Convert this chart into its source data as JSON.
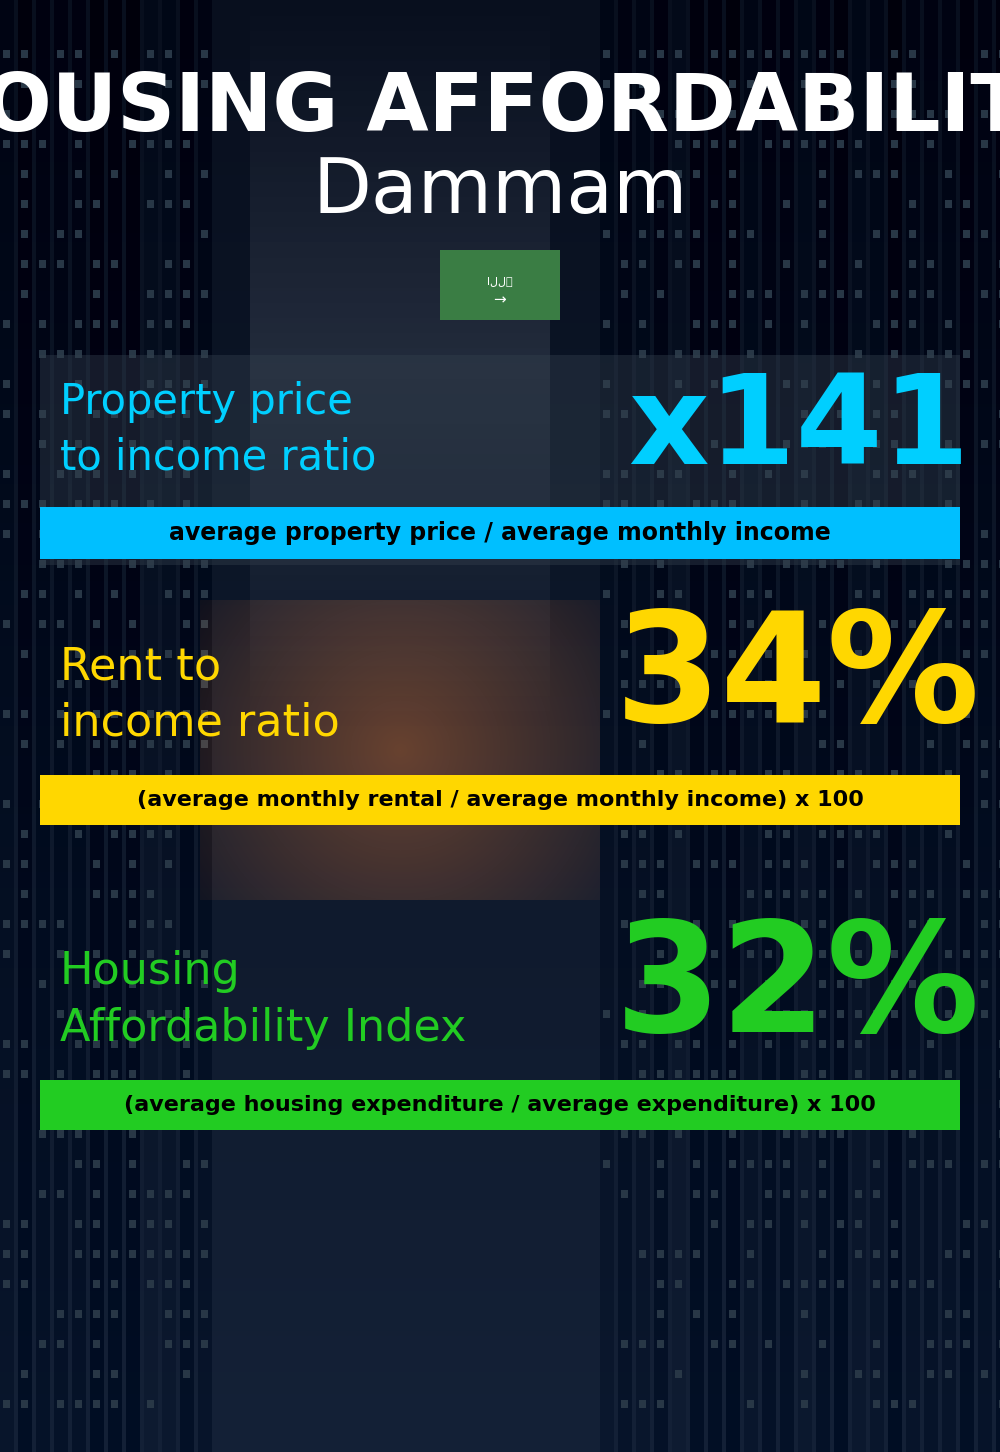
{
  "title_main": "HOUSING AFFORDABILITY",
  "title_city": "Dammam",
  "section1_label": "Property price\nto income ratio",
  "section1_value": "x141",
  "section1_sublabel": "average property price / average monthly income",
  "section1_label_color": "#00CFFF",
  "section1_value_color": "#00CFFF",
  "section1_bg_color": "#00BFFF",
  "section2_label": "Rent to\nincome ratio",
  "section2_value": "34%",
  "section2_sublabel": "(average monthly rental / average monthly income) x 100",
  "section2_label_color": "#FFD700",
  "section2_value_color": "#FFD700",
  "section2_bg_color": "#FFD700",
  "section3_label": "Housing\nAffordability Index",
  "section3_value": "32%",
  "section3_sublabel": "(average housing expenditure / average expenditure) x 100",
  "section3_label_color": "#22CC22",
  "section3_value_color": "#22CC22",
  "section3_bg_color": "#22CC22",
  "bg_dark": "#060e1a",
  "text_color": "#ffffff",
  "flag_green": "#3a7d44",
  "title_fontsize": 58,
  "city_fontsize": 55,
  "label_fontsize": 28,
  "value_fontsize": 82,
  "sublabel_fontsize": 16
}
